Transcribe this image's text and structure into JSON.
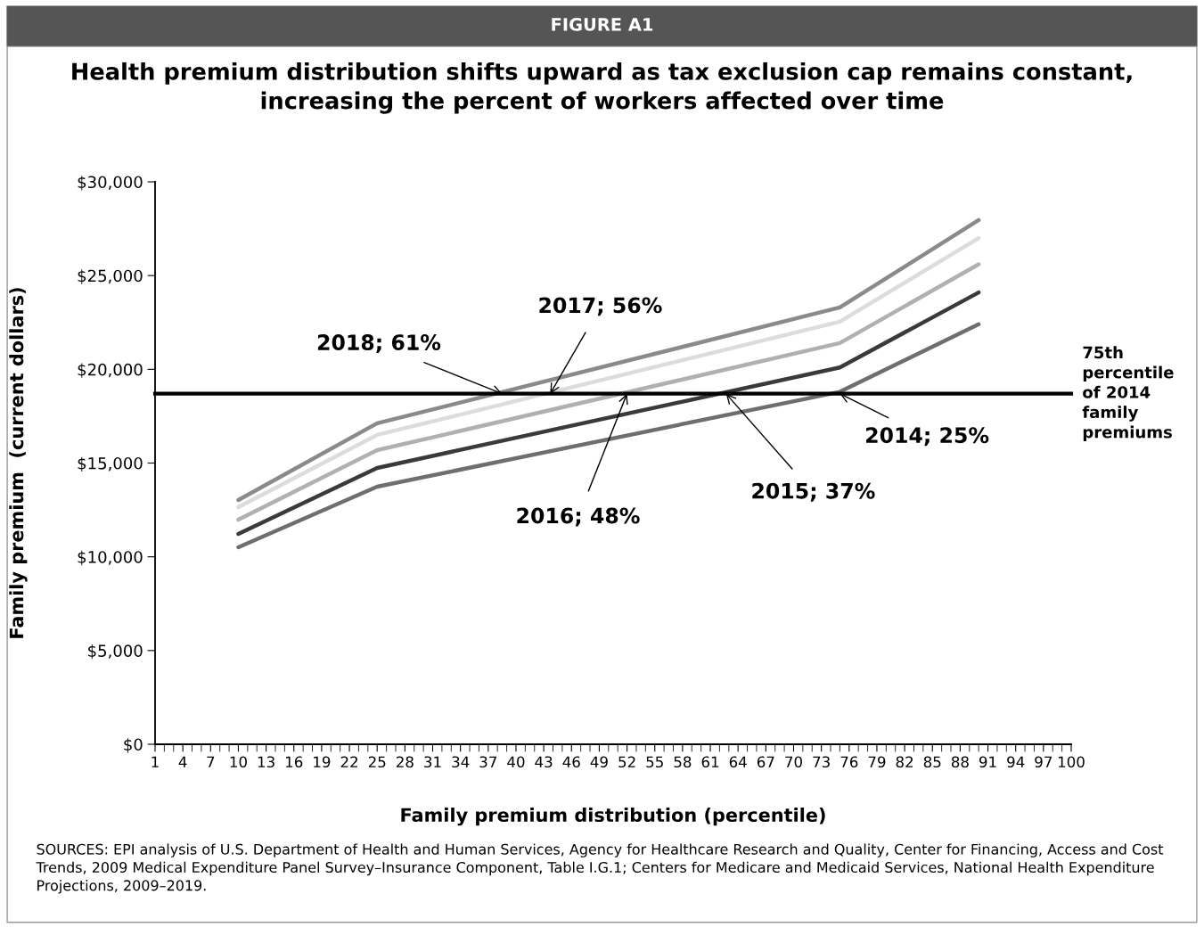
{
  "chart_data": {
    "type": "line",
    "title": "Health premium distribution shifts upward as tax exclusion cap remains constant,\nincreasing the percent of workers affected over time",
    "xlabel": "Family premium distribution (percentile)",
    "ylabel": "Family premium  (current dollars)",
    "x": [
      10,
      25,
      75,
      90
    ],
    "series": [
      {
        "color": "#8a8a8a",
        "values": [
          13030,
          17120,
          23300,
          27960
        ]
      },
      {
        "color": "#dcdcdc",
        "values": [
          12650,
          16500,
          22540,
          27000
        ]
      },
      {
        "color": "#b0b0b0",
        "values": [
          11980,
          15690,
          21400,
          25600
        ]
      },
      {
        "color": "#3a3a3a",
        "values": [
          11220,
          14740,
          20100,
          24100
        ]
      },
      {
        "color": "#6e6e6e",
        "values": [
          10510,
          13740,
          18800,
          22400
        ]
      }
    ],
    "xlim": [
      1,
      100
    ],
    "xticks": [
      1,
      4,
      7,
      10,
      13,
      16,
      19,
      22,
      25,
      28,
      31,
      34,
      37,
      40,
      43,
      46,
      49,
      52,
      55,
      58,
      61,
      64,
      67,
      70,
      73,
      76,
      79,
      82,
      85,
      88,
      91,
      94,
      97,
      100
    ],
    "ylim": [
      0,
      30000
    ],
    "yticks": [
      {
        "value": 0,
        "label": "$0"
      },
      {
        "value": 5000,
        "label": "$5,000"
      },
      {
        "value": 10000,
        "label": "$10,000"
      },
      {
        "value": 15000,
        "label": "$15,000"
      },
      {
        "value": 20000,
        "label": "$20,000"
      },
      {
        "value": 25000,
        "label": "$25,000"
      },
      {
        "value": 30000,
        "label": "$30,000"
      }
    ],
    "ref_lines": [
      {
        "axis": "y",
        "value": 18700,
        "label": "75th\npercentile\nof 2014\nfamily\npremiums",
        "color": "#000000"
      }
    ],
    "annotations": [
      "FIGURE A1",
      "SOURCES: EPI analysis of U.S. Department of Health and Human Services, Agency for Healthcare Research and Quality, Center for Financing, Access and Cost Trends, 2009 Medical Expenditure Panel Survey–Insurance Component, Table I.G.1; Centers for Medicare and Medicaid Services, National Health Expenditure Projections, 2009–2019.",
      {
        "text": "2018; 61%",
        "x": 38.5,
        "y": 18700
      },
      {
        "text": "2017; 56%",
        "x": 43.7,
        "y": 18700
      },
      {
        "text": "2016; 48%",
        "x": 52,
        "y": 18700
      },
      {
        "text": "2015; 37%",
        "x": 62.7,
        "y": 18700
      },
      {
        "text": "2014; 25%",
        "x": 75,
        "y": 18700
      }
    ],
    "grid": false,
    "marker": "none",
    "line_style": "solid"
  }
}
